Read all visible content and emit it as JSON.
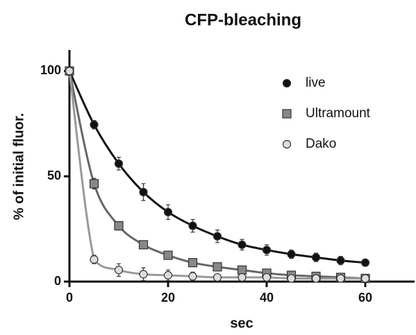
{
  "chart_data": {
    "type": "scatter",
    "title": "CFP-bleaching",
    "x_label": "sec",
    "y_label": "% of initial fluor.",
    "x": [
      0,
      5,
      10,
      15,
      20,
      25,
      30,
      35,
      40,
      45,
      50,
      55,
      60
    ],
    "series": [
      {
        "name": "live",
        "color": "#111111",
        "line_color": "#111111",
        "marker": "circle",
        "values": [
          100,
          74.5,
          56,
          42.5,
          33,
          26.5,
          21.5,
          17.5,
          15,
          13,
          11.5,
          10,
          9
        ],
        "errors": [
          0,
          2,
          3,
          4,
          3.5,
          3,
          3,
          2.5,
          2.5,
          2,
          2,
          2,
          1.5
        ]
      },
      {
        "name": "Ultramount",
        "color": "#888888",
        "line_color": "#666666",
        "marker": "square",
        "values": [
          100,
          46.5,
          26.5,
          17.5,
          12.5,
          9,
          7,
          5.5,
          4,
          3,
          2.5,
          2,
          1.5
        ],
        "errors": [
          0,
          2.5,
          2,
          1.5,
          1.5,
          1,
          1,
          1,
          1,
          0.5,
          0.5,
          0.5,
          0.5
        ]
      },
      {
        "name": "Dako",
        "color": "#dddddd",
        "line_color": "#999999",
        "marker": "circle",
        "values": [
          100,
          10.5,
          5.5,
          3.5,
          3,
          2.5,
          2,
          2,
          2,
          1.5,
          1.5,
          1.5,
          1.5
        ],
        "errors": [
          0,
          2,
          3,
          3,
          2.5,
          2,
          1,
          1,
          1,
          0.5,
          0.5,
          0.5,
          0.5
        ]
      }
    ],
    "xlim": [
      0,
      70
    ],
    "ylim": [
      0,
      110
    ],
    "xticks": [
      0,
      20,
      40,
      60
    ],
    "yticks": [
      0,
      50,
      100
    ],
    "legend": "upper right"
  }
}
